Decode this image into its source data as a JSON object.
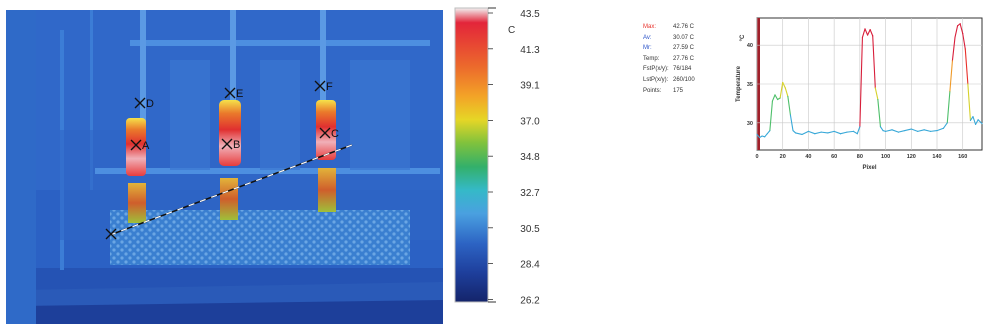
{
  "thermal_image": {
    "markers": [
      {
        "label": "D"
      },
      {
        "label": "E"
      },
      {
        "label": "F"
      },
      {
        "label": "A"
      },
      {
        "label": "B"
      },
      {
        "label": "C"
      }
    ],
    "scale": {
      "unit": "C",
      "ticks": [
        "43.5",
        "41.3",
        "39.1",
        "37.0",
        "34.8",
        "32.7",
        "30.5",
        "28.4",
        "26.2"
      ]
    }
  },
  "profile_stats": [
    {
      "label": "Max:",
      "value": "42.76 C",
      "color": "#e8302a"
    },
    {
      "label": "Av:",
      "value": "30.07 C",
      "color": "#2a52c8"
    },
    {
      "label": "Mr:",
      "value": "27.59 C",
      "color": "#2a52c8"
    },
    {
      "label": "Temp:",
      "value": "27.76 C",
      "color": "#333333"
    },
    {
      "label": "FstP(x/y):",
      "value": "76/184",
      "color": "#333333"
    },
    {
      "label": "LstP(x/y):",
      "value": "260/100",
      "color": "#333333"
    },
    {
      "label": "Points:",
      "value": "175",
      "color": "#333333"
    }
  ],
  "chart_data": {
    "type": "line",
    "xlabel": "Pixel",
    "ylabel": "Temperature",
    "yunit": "°C",
    "xlim": [
      0,
      175
    ],
    "ylim": [
      26.5,
      43.5
    ],
    "xticks": [
      0,
      20,
      40,
      60,
      80,
      100,
      120,
      140,
      160
    ],
    "yticks": [
      30,
      35,
      40
    ],
    "grid": true,
    "series": [
      {
        "x": [
          0,
          2,
          4,
          6,
          8,
          10,
          12,
          14,
          16,
          18,
          20,
          22,
          24,
          26,
          28,
          30,
          35,
          40,
          45,
          50,
          55,
          60,
          65,
          70,
          75,
          78,
          80,
          82,
          84,
          86,
          88,
          90,
          92,
          94,
          96,
          98,
          100,
          105,
          110,
          115,
          120,
          125,
          130,
          135,
          140,
          145,
          148,
          150,
          152,
          154,
          156,
          158,
          160,
          162,
          164,
          166,
          168,
          170,
          172,
          175
        ],
        "y": [
          28.5,
          28.1,
          28.3,
          28.2,
          28.6,
          29.0,
          32.8,
          33.6,
          33.0,
          33.2,
          35.2,
          34.5,
          33.4,
          31.0,
          29.0,
          28.7,
          28.5,
          28.9,
          28.6,
          28.8,
          28.7,
          28.9,
          28.6,
          28.8,
          28.9,
          28.6,
          29.5,
          41.0,
          42.1,
          41.3,
          42.0,
          41.2,
          34.5,
          33.0,
          29.5,
          29.0,
          28.9,
          29.1,
          28.8,
          29.0,
          29.2,
          28.9,
          29.1,
          28.9,
          29.0,
          29.3,
          30.0,
          34.0,
          38.0,
          41.0,
          42.5,
          42.76,
          41.5,
          39.5,
          35.0,
          30.3,
          30.8,
          29.8,
          30.4,
          29.9
        ]
      }
    ]
  }
}
